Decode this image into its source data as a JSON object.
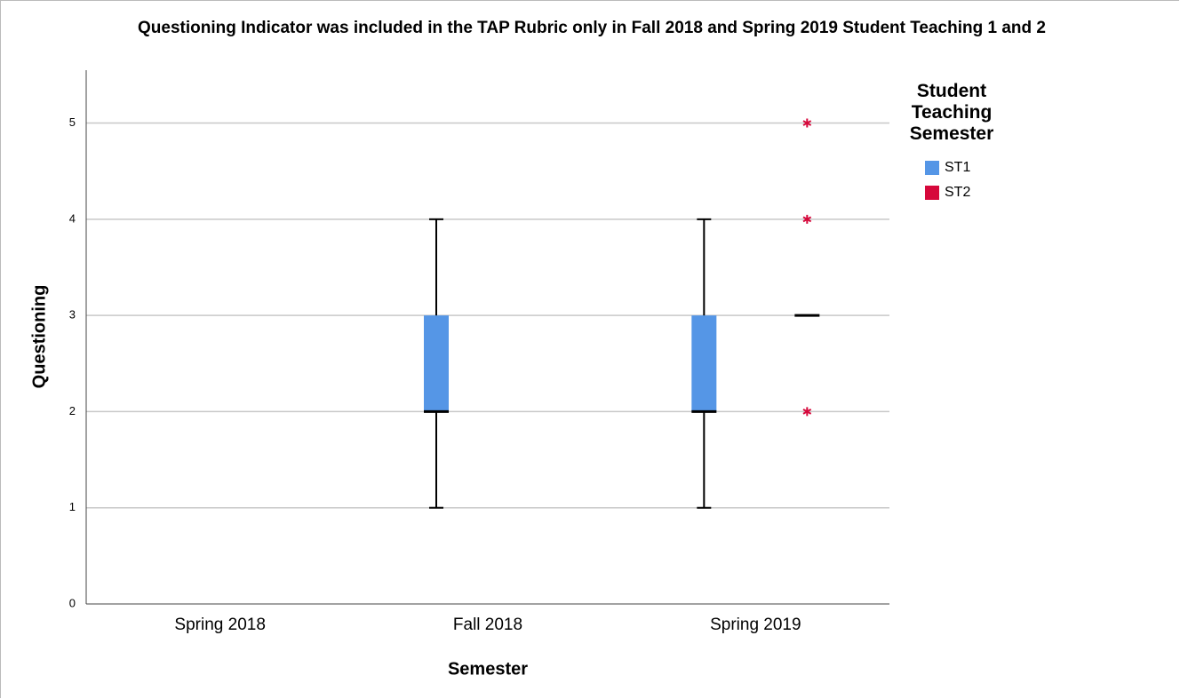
{
  "chart_data": {
    "type": "boxplot",
    "title": "Questioning Indicator was included in the TAP Rubric only in Fall 2018 and Spring 2019 Student Teaching 1 and 2",
    "x_label": "Semester",
    "y_label": "Questioning",
    "legend_title": "Student Teaching Semester",
    "categories": [
      "Spring 2018",
      "Fall 2018",
      "Spring 2019"
    ],
    "series": [
      {
        "name": "ST1",
        "color": "#5596e6",
        "values": [
          null,
          {
            "min": 1,
            "q1": 2,
            "median": 2,
            "q3": 3,
            "max": 4,
            "outliers": []
          },
          {
            "min": 1,
            "q1": 2,
            "median": 2,
            "q3": 3,
            "max": 4,
            "outliers": []
          }
        ]
      },
      {
        "name": "ST2",
        "color": "#d6083b",
        "values": [
          null,
          null,
          {
            "min": 3,
            "q1": 3,
            "median": 3,
            "q3": 3,
            "max": 3,
            "outliers": [
              5,
              4,
              2
            ]
          }
        ]
      }
    ],
    "ylim": [
      0,
      5.55
    ],
    "yticks": [
      0,
      1,
      2,
      3,
      4,
      5
    ],
    "grid": true
  }
}
